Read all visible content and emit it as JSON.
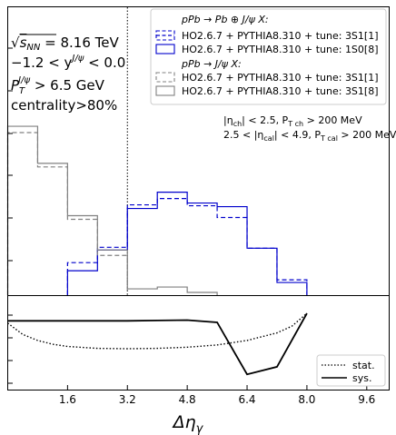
{
  "chart_data": [
    {
      "type": "line",
      "panel": "top",
      "annotations": [
        {
          "id": "a1",
          "pre": "√",
          "sub": "",
          "over": "s",
          "oversub": "NN",
          "post": " = 8.16 TeV"
        },
        {
          "id": "a2",
          "text": "−1.2 < y",
          "sup": "J/ψ",
          "post": " < 0.0"
        },
        {
          "id": "a3",
          "text": "P",
          "sub": "T",
          "sup": "J/ψ",
          "post": " > 6.5 GeV"
        },
        {
          "id": "a4",
          "text": "centrality>80%"
        },
        {
          "id": "a5",
          "text": "|η",
          "sub": "ch",
          "post": "| < 2.5, P",
          "sub2": "T ch",
          "post2": " > 200 MeV"
        },
        {
          "id": "a6",
          "text": "2.5 < |η",
          "sub": "cal",
          "post": "| < 4.9, P",
          "sub2": "T cal",
          "post2": " > 200 MeV"
        }
      ],
      "legend": {
        "placement": "top-right",
        "header1": "pPb → Pb ⊕ J/ψ X:",
        "header2": "pPb → J/ψ X:",
        "entries": [
          {
            "label": "HO2.6.7 + PYTHIA8.310 + tune: ",
            "state": "3S1[1]",
            "color": "#0000cc",
            "dash": true
          },
          {
            "label": "HO2.6.7 + PYTHIA8.310 + tune: ",
            "state": "1S0[8]",
            "color": "#0000cc",
            "dash": false
          },
          {
            "label": "HO2.6.7 + PYTHIA8.310 + tune: ",
            "state": "3S1[1]",
            "color": "#808080",
            "dash": true
          },
          {
            "label": "HO2.6.7 + PYTHIA8.310 + tune: ",
            "state": "3S1[8]",
            "color": "#808080",
            "dash": false
          }
        ]
      },
      "x_edges": [
        0,
        0.8,
        1.6,
        2.4,
        3.2,
        4.0,
        4.8,
        5.6,
        6.4,
        7.2,
        8.0,
        8.8,
        9.6,
        10.2
      ],
      "ylim": [
        0,
        1
      ],
      "vline_x": 3.2,
      "series": [
        {
          "style": "blue-dashed",
          "color": "#0000cc",
          "dash": true,
          "values": [
            0,
            0,
            0.18,
            0.265,
            0.5,
            0.535,
            0.495,
            0.43,
            0.26,
            0.085,
            0,
            0,
            0
          ]
        },
        {
          "style": "blue-solid",
          "color": "#0000cc",
          "dash": false,
          "values": [
            0,
            0,
            0.135,
            0.25,
            0.48,
            0.57,
            0.51,
            0.49,
            0.26,
            0.07,
            0,
            0,
            0
          ]
        },
        {
          "style": "gray-dashed",
          "color": "#808080",
          "dash": true,
          "values": [
            0.9,
            0.71,
            0.42,
            0.22,
            0,
            0,
            0,
            0,
            0,
            0,
            0,
            0,
            0
          ]
        },
        {
          "style": "gray-solid",
          "color": "#808080",
          "dash": false,
          "values": [
            0.935,
            0.73,
            0.44,
            0.25,
            0.035,
            0.045,
            0.015,
            0,
            0,
            0,
            0,
            0,
            0
          ]
        }
      ]
    },
    {
      "type": "line",
      "panel": "bottom",
      "xlabel": "Δη",
      "xlabel_sub": "γ",
      "x_ticks": [
        "1.6",
        "3.2",
        "4.8",
        "6.4",
        "8.0",
        "9.6"
      ],
      "xlim": [
        0,
        10.2
      ],
      "ylim": [
        0,
        1
      ],
      "legend": {
        "placement": "bottom-right",
        "entries": [
          {
            "label": "stat.",
            "dash": "dotted"
          },
          {
            "label": "sys.",
            "dash": "solid"
          }
        ]
      },
      "series": [
        {
          "name": "stat.",
          "dash": "dotted",
          "color": "#000000",
          "x": [
            0,
            0.4,
            0.8,
            1.2,
            1.6,
            2.4,
            3.2,
            4.0,
            4.8,
            5.6,
            6.4,
            7.2,
            7.6,
            8.0
          ],
          "y": [
            0.87,
            0.72,
            0.64,
            0.59,
            0.56,
            0.535,
            0.53,
            0.535,
            0.55,
            0.58,
            0.64,
            0.74,
            0.83,
            1.0
          ]
        },
        {
          "name": "sys.",
          "dash": "solid",
          "color": "#000000",
          "x": [
            0,
            0.8,
            1.6,
            2.4,
            3.2,
            4.0,
            4.8,
            5.6,
            6.4,
            7.2,
            8.0
          ],
          "y": [
            0.9,
            0.9,
            0.9,
            0.9,
            0.9,
            0.905,
            0.91,
            0.88,
            0.19,
            0.29,
            1.0
          ]
        }
      ]
    }
  ]
}
